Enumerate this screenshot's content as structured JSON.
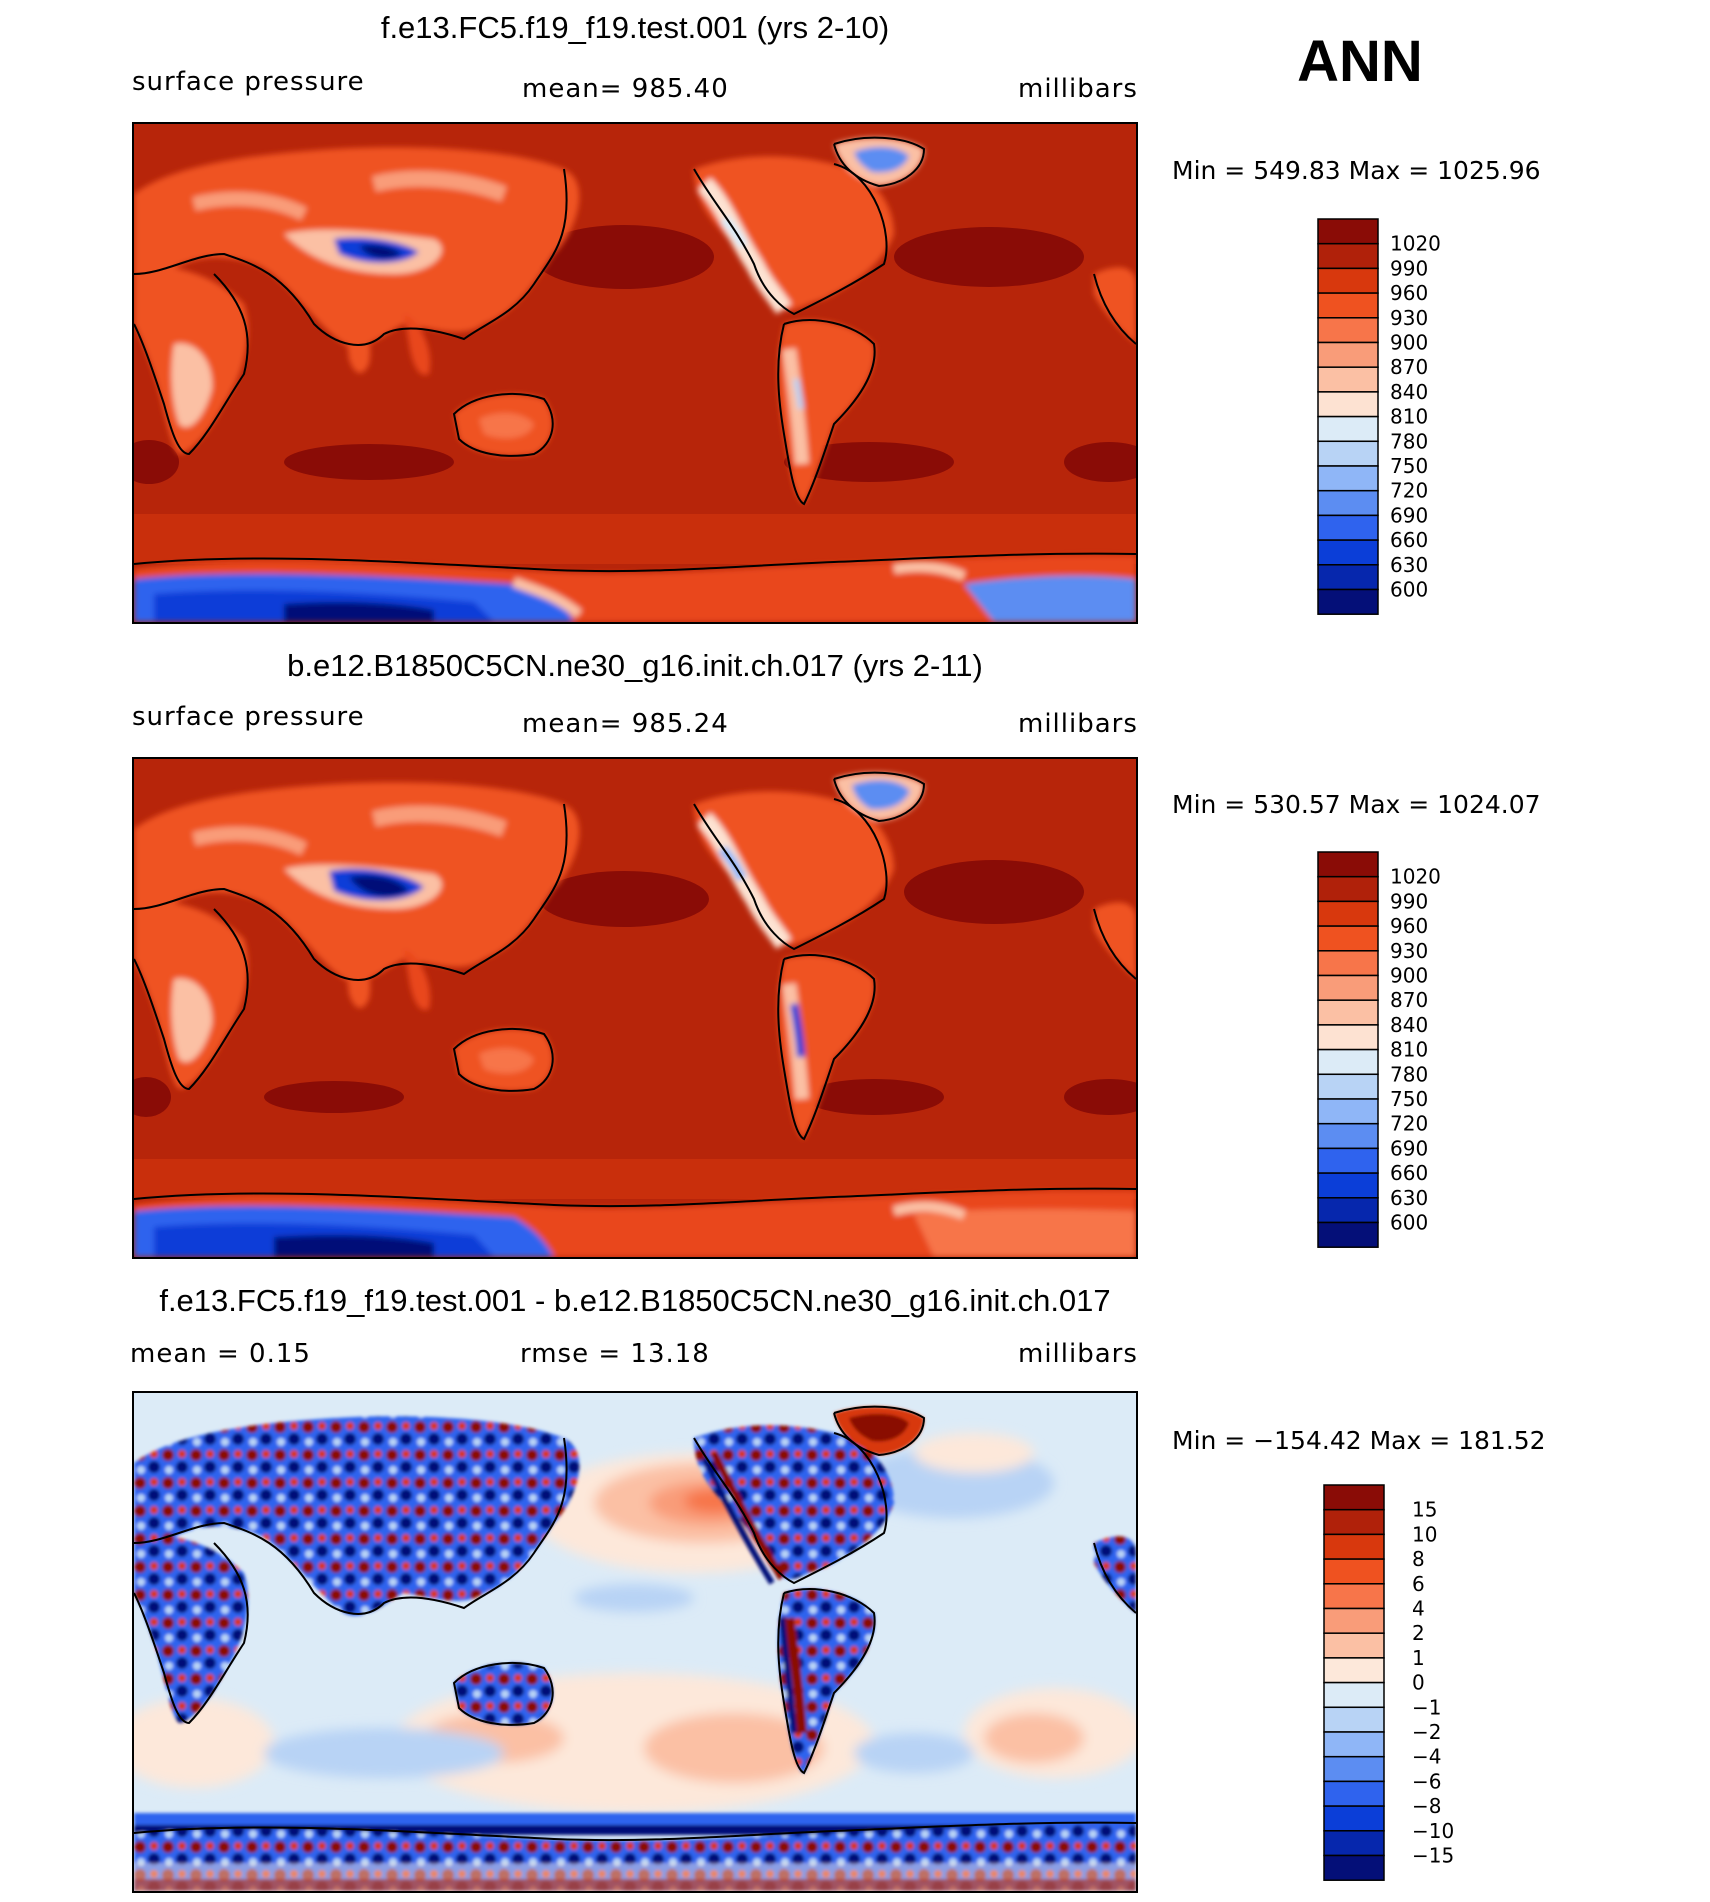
{
  "season": "ANN",
  "panels": [
    {
      "id": "test",
      "title": "f.e13.FC5.f19_f19.test.001 (yrs 2-10)",
      "left_label": "surface pressure",
      "center_label": "mean=  985.40",
      "units": "millibars",
      "minmax": "Min  =  549.83  Max  =  1025.96",
      "field_min": 549.83,
      "field_max": 1025.96,
      "field_mean": 985.4
    },
    {
      "id": "control",
      "title": "b.e12.B1850C5CN.ne30_g16.init.ch.017 (yrs 2-11)",
      "left_label": "surface pressure",
      "center_label": "mean=  985.24",
      "units": "millibars",
      "minmax": "Min  =  530.57  Max  =  1024.07",
      "field_min": 530.57,
      "field_max": 1024.07,
      "field_mean": 985.24
    },
    {
      "id": "diff",
      "title": "f.e13.FC5.f19_f19.test.001 - b.e12.B1850C5CN.ne30_g16.init.ch.017",
      "left_label": "mean =     0.15",
      "center_label": "rmse =    13.18",
      "units": "millibars",
      "minmax": "Min  =  −154.42  Max  =  181.52",
      "field_min": -154.42,
      "field_max": 181.52,
      "field_mean": 0.15,
      "field_rmse": 13.18
    }
  ],
  "colorbars": {
    "absolute": {
      "levels": [
        "1020",
        "990",
        "960",
        "930",
        "900",
        "870",
        "840",
        "810",
        "780",
        "750",
        "720",
        "690",
        "660",
        "630",
        "600"
      ],
      "colors": [
        "#8a0c06",
        "#b0210a",
        "#d8380d",
        "#ef5220",
        "#f7754a",
        "#f99c79",
        "#fbc0a4",
        "#fde2d2",
        "#dcebf7",
        "#b8d3f5",
        "#8fb6f7",
        "#5c8df2",
        "#2f63ee",
        "#0b3ed8",
        "#0627ad",
        "#040f78"
      ]
    },
    "difference": {
      "levels": [
        "15",
        "10",
        "8",
        "6",
        "4",
        "2",
        "1",
        "0",
        "−1",
        "−2",
        "−4",
        "−6",
        "−8",
        "−10",
        "−15"
      ],
      "colors": [
        "#8a0c06",
        "#b0210a",
        "#d8380d",
        "#ef5220",
        "#f7754a",
        "#f99c79",
        "#fbc0a4",
        "#fde8da",
        "#dcebf7",
        "#b8d3f5",
        "#8fb6f7",
        "#5c8df2",
        "#2f63ee",
        "#0b3ed8",
        "#0627ad",
        "#040f78"
      ]
    }
  }
}
